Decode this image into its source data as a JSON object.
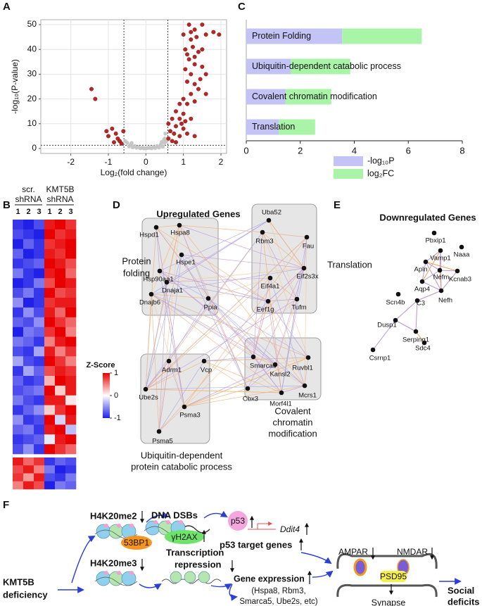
{
  "panels": [
    "A",
    "B",
    "C",
    "D",
    "E",
    "F"
  ],
  "chart_data": [
    {
      "type": "scatter",
      "x_label": "Log₂(fold change)",
      "y_label": "-log₁₀(P-value)",
      "xlim": [
        -2.8,
        2.15
      ],
      "ylim": [
        -2,
        52
      ],
      "xticks": [
        -2,
        -1,
        0,
        1,
        2
      ],
      "yticks": [
        0,
        10,
        20,
        30,
        40,
        50
      ],
      "grid": true,
      "fc_cutoffs": [
        -0.585,
        0.585
      ],
      "p_cutoff": 1.3,
      "series": [
        {
          "color": "#c4c4c4",
          "x": [
            0,
            0.1,
            -0.1,
            0.2,
            -0.2,
            0.3,
            -0.3,
            0.4,
            -0.4,
            0.5,
            -0.5,
            0.55,
            -0.55,
            0.05,
            -0.15,
            0.25,
            -0.25,
            0.35,
            -0.35,
            0.45,
            -0.45,
            0.5,
            0.52,
            0.15,
            -0.05,
            0.42,
            -0.38,
            0.48
          ],
          "values": [
            0.1,
            0.3,
            0.3,
            0.6,
            0.6,
            1,
            1,
            1.6,
            1.6,
            2.3,
            2.3,
            3,
            3,
            0.2,
            0.1,
            0.2,
            0.3,
            0.4,
            0.5,
            0.8,
            0.9,
            4,
            6,
            0.1,
            0.05,
            2.6,
            2.2,
            3.3
          ]
        },
        {
          "color": "#b01c1c",
          "x": [
            1.0,
            1.15,
            1.2,
            1.2,
            1.3,
            1.35,
            1.5,
            1.6,
            1.8,
            1.95,
            1.05,
            1.1,
            1.25,
            1.3,
            1.4,
            1.5,
            1.15,
            1.3,
            1.5,
            1.6,
            1.45,
            1.2,
            1.05,
            1.1,
            1.3,
            1.4,
            1.6,
            1.2,
            1.0,
            0.9,
            1.1,
            1.3,
            0.8,
            1.0,
            0.7,
            0.9,
            1.2,
            0.6,
            0.8,
            1.0,
            0.65,
            0.75,
            0.9,
            1.1,
            0.6,
            0.7,
            0.8,
            1.3,
            0.95,
            1.05,
            -1.45,
            -1.35,
            -1.05,
            -1.0,
            -0.9,
            -0.8,
            -0.75,
            -0.7,
            -0.65,
            -0.85,
            -0.6
          ],
          "values": [
            46,
            50,
            47,
            44,
            48,
            45,
            50,
            46,
            47,
            46,
            40,
            38,
            41,
            37,
            39,
            40,
            36,
            34,
            33,
            30,
            28,
            30,
            32,
            27,
            26,
            24,
            22,
            22,
            20,
            18,
            18,
            19,
            15,
            14,
            12,
            12,
            12,
            10,
            9,
            8,
            7,
            6,
            5,
            6,
            4,
            3,
            2.5,
            5,
            10,
            11,
            24,
            20,
            7,
            5,
            8,
            6,
            4,
            3,
            2,
            2.5,
            7
          ]
        }
      ]
    },
    {
      "type": "bar",
      "orientation": "horizontal",
      "stacked": true,
      "categories": [
        "Protein Folding",
        "Ubiquitin-dependent catabolic process",
        "Covalent chromatin modification",
        "Translation"
      ],
      "series": [
        {
          "name": "-log₁₀P",
          "color": "#c3c3f6",
          "values": [
            3.55,
            1.65,
            1.45,
            1.2
          ]
        },
        {
          "name": "log₂FC",
          "color": "#aaf4a8",
          "values": [
            2.95,
            2.2,
            1.7,
            1.35
          ]
        }
      ],
      "xlim": [
        0,
        8
      ],
      "xticks": [
        0,
        2,
        4,
        6,
        8
      ]
    }
  ],
  "heatmap": {
    "groups": [
      [
        "scr.",
        "shRNA"
      ],
      [
        "KMT5B",
        "shRNA"
      ]
    ],
    "columns": [
      "1",
      "2",
      "3",
      "1",
      "2",
      "3"
    ],
    "colorbar_title": "Z-Score",
    "zlim": [
      -1,
      1
    ],
    "colorbar_ticks": [
      1,
      0,
      -1
    ],
    "clusters": [
      [
        [
          -0.9,
          -1,
          -0.8,
          0.9,
          1,
          0.8
        ],
        [
          -0.8,
          -0.9,
          -1,
          1,
          0.8,
          0.9
        ],
        [
          -1,
          -0.7,
          -0.9,
          0.8,
          0.9,
          1
        ],
        [
          -0.7,
          -1,
          -0.9,
          0.9,
          0.8,
          1
        ],
        [
          -0.9,
          -0.8,
          -0.7,
          1,
          0.9,
          0.7
        ],
        [
          -0.6,
          -0.9,
          -1,
          0.9,
          1,
          0.6
        ],
        [
          -1,
          -0.9,
          -0.6,
          0.7,
          1,
          0.9
        ],
        [
          -0.8,
          -0.6,
          -0.9,
          1,
          0.7,
          0.8
        ],
        [
          -0.5,
          -1,
          -0.9,
          0.8,
          0.9,
          0.9
        ],
        [
          -0.9,
          -0.5,
          -0.8,
          0.9,
          0.6,
          1
        ],
        [
          -0.7,
          -0.8,
          -0.5,
          1,
          0.8,
          0.6
        ],
        [
          -1,
          -0.6,
          -0.7,
          0.8,
          1,
          0.5
        ],
        [
          -0.6,
          -0.7,
          -0.9,
          0.5,
          0.9,
          1
        ],
        [
          -0.8,
          -0.9,
          -0.4,
          0.9,
          0.5,
          0.8
        ],
        [
          -0.4,
          -0.8,
          -0.9,
          1,
          0.8,
          0.5
        ],
        [
          -0.9,
          -0.4,
          -0.7,
          0.7,
          0.9,
          0.8
        ],
        [
          -0.7,
          -0.9,
          -0.8,
          0.3,
          1,
          0.9
        ],
        [
          -0.8,
          -0.7,
          -0.6,
          1,
          0.2,
          0.9
        ],
        [
          -0.6,
          -0.8,
          -0.9,
          0.9,
          0.9,
          0.1
        ],
        [
          -0.9,
          -0.7,
          -0.5,
          0.2,
          0.8,
          1
        ],
        [
          -0.5,
          -0.9,
          -0.8,
          1,
          -0.2,
          0.9
        ],
        [
          -0.7,
          -0.6,
          -0.9,
          0.9,
          1,
          -0.3
        ],
        [
          -0.9,
          -0.8,
          -0.7,
          -0.1,
          0.9,
          1
        ],
        [
          -0.8,
          -0.5,
          -0.9,
          1,
          0.8,
          0.6
        ]
      ],
      [
        [
          0.9,
          0.6,
          0.8,
          -0.9,
          -0.7,
          -0.8
        ],
        [
          0.7,
          0.9,
          0.5,
          -0.6,
          -1,
          -0.9
        ],
        [
          0.8,
          0.4,
          0.9,
          -0.8,
          -0.9,
          -0.6
        ],
        [
          0.5,
          0.9,
          0.7,
          -1,
          -0.6,
          -0.7
        ]
      ]
    ]
  },
  "network_up": {
    "title": "Upregulated Genes",
    "nodes": [
      "Hspd1",
      "Hspa8",
      "Hspe1",
      "Hsp90aa1",
      "Dnaja1",
      "Dnajb6",
      "Ppia",
      "Uba52",
      "Rbm3",
      "Fau",
      "Eif2s3x",
      "Eif4a1",
      "Eef1g",
      "Tufm",
      "Smarca5",
      "Ruvbl1",
      "Kansl2",
      "Mcrs1",
      "Morf4l1",
      "Cbx3",
      "Adrm1",
      "Vcp",
      "Ube2s",
      "Psma3",
      "Psma5"
    ],
    "groups": [
      [
        "Protein",
        "folding"
      ],
      [
        "Translation"
      ],
      [
        "Covalent",
        "chromatin",
        "modification"
      ],
      [
        "Ubiquitin-dependent",
        "protein catabolic process"
      ]
    ]
  },
  "network_down": {
    "title": "Downregulated Genes",
    "nodes": [
      "Pbxip1",
      "Vamp1",
      "Naaa",
      "Apln",
      "Kcnab3",
      "Nefm",
      "Scn4b",
      "Aqp4",
      "Nefh",
      "C3",
      "Dusp1",
      "Serping1",
      "Csrnp1",
      "Sdc4"
    ]
  },
  "pathway": {
    "cause": [
      "KMT5B",
      "deficiency"
    ],
    "h4k20me2": "H4K20me2",
    "bp53": "53BP1",
    "dsb": "DNA DSBs",
    "gh2ax": "γH2AX",
    "p53": "p53",
    "ddit4": "Ddit4",
    "p53_targets": "p53 target genes",
    "h4k20me3": "H4K20me3",
    "repression": [
      "Transcription",
      "repression"
    ],
    "gene_expression": "Gene expression",
    "genes": [
      "(Hspa8, Rbm3,",
      "Smarca5, Ube2s, etc)"
    ],
    "ampar": "AMPAR",
    "nmdar": "NMDAR",
    "psd95": "PSD95",
    "synapse": "Synapse",
    "outcome": [
      "Social",
      "deficits"
    ]
  }
}
